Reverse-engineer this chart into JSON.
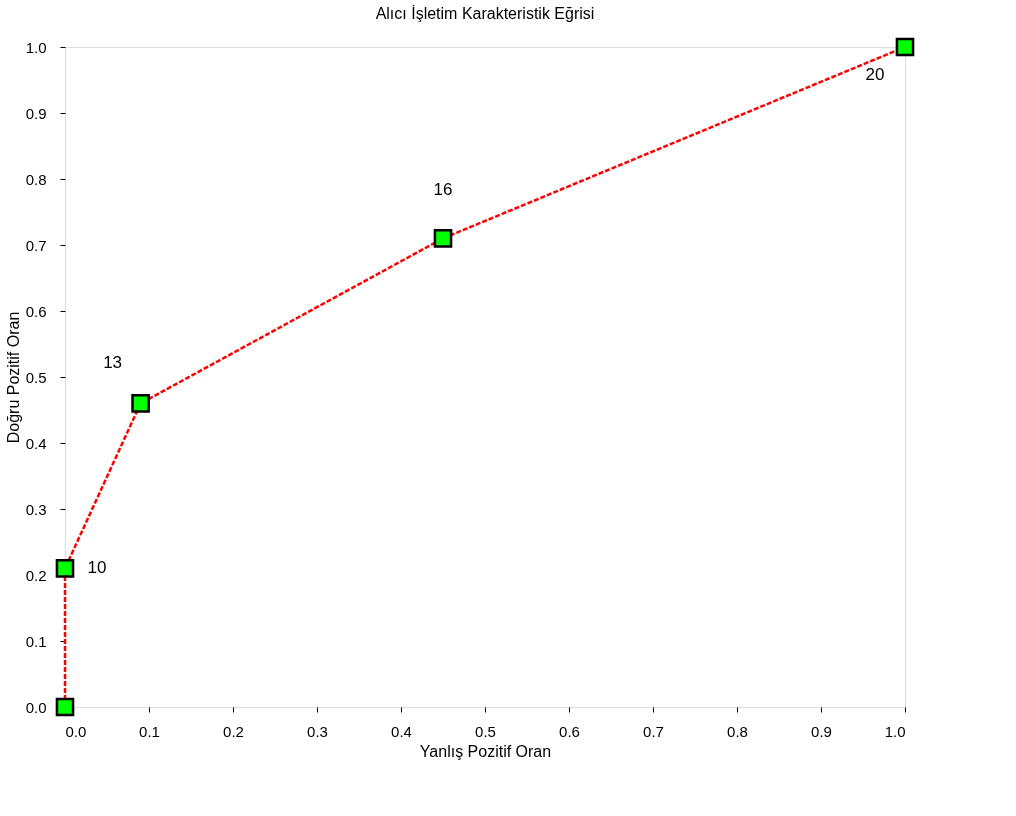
{
  "chart_data": {
    "type": "line",
    "title": "Alıcı İşletim Karakteristik Eğrisi",
    "xlabel": "Yanlış Pozitif Oran",
    "ylabel": "Doğru Pozitif  Oran",
    "x": [
      0,
      0,
      0.09,
      0.45,
      1
    ],
    "series": [
      {
        "color": "#ff0000",
        "colors": [
          "#00ff00",
          "#00ff00",
          "#00ff00",
          "#00ff00",
          "#00ff00"
        ],
        "values": [
          0,
          0.21,
          0.46,
          0.71,
          1
        ]
      }
    ],
    "xlim": [
      0,
      1
    ],
    "ylim": [
      0,
      1
    ],
    "xticks": [
      {
        "value": 0,
        "label": "0.0"
      },
      0.1,
      0.2,
      0.3,
      0.4,
      0.5,
      0.6,
      0.7,
      0.8,
      0.9,
      {
        "value": 1,
        "label": "1.0"
      }
    ],
    "yticks": [
      {
        "value": 0,
        "label": "0.0"
      },
      0.1,
      0.2,
      0.3,
      0.4,
      0.5,
      0.6,
      0.7,
      0.8,
      0.9,
      {
        "value": 1,
        "label": "1.0"
      }
    ],
    "marker": "square",
    "line_style": "dashed",
    "grid": false,
    "annotations": [
      {
        "text": "10",
        "x": 0,
        "y": 0.21
      },
      {
        "text": "13",
        "x": 0.09,
        "y": 0.46
      },
      {
        "text": "16",
        "x": 0.45,
        "y": 0.71
      },
      {
        "text": "20",
        "x": 1,
        "y": 1
      }
    ]
  }
}
